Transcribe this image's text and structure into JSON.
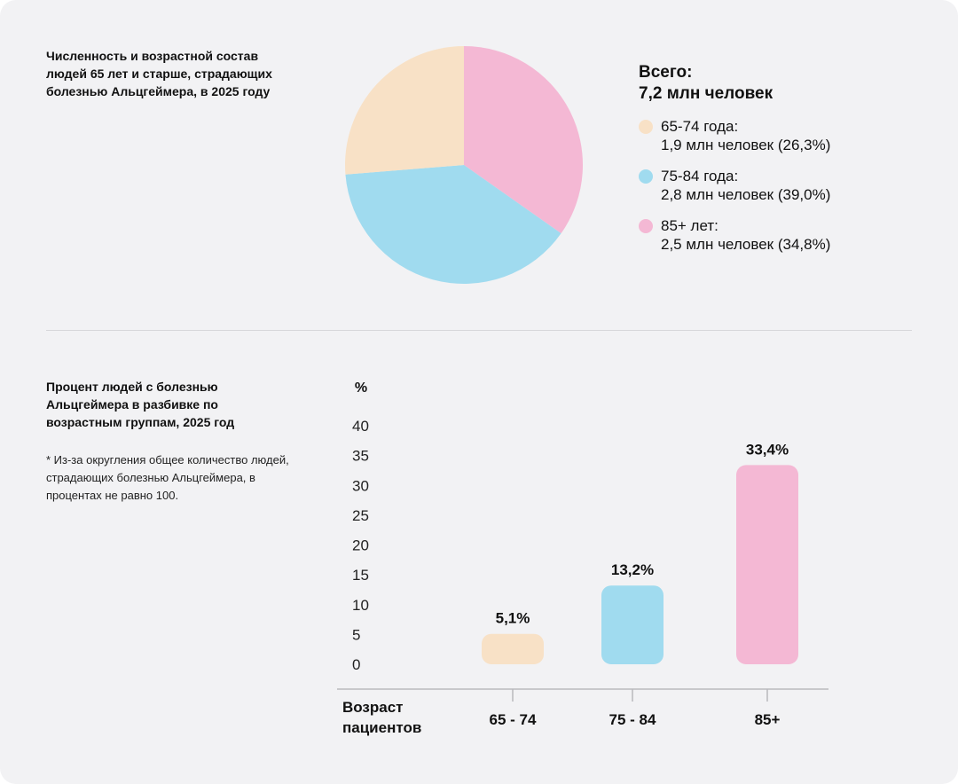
{
  "pie": {
    "title": "Численность и возрастной состав людей 65 лет и старше, страдающих болезнью Альцгеймера, в 2025 году",
    "total_label": "Всего:",
    "total_value": "7,2 млн человек",
    "legend": [
      {
        "name": "65-74 года:",
        "detail": "1,9 млн человек (26,3%)"
      },
      {
        "name": "75-84 года:",
        "detail": "2,8 млн человек (39,0%)"
      },
      {
        "name": "85+ лет:",
        "detail": "2,5 млн человек (34,8%)"
      }
    ]
  },
  "bar": {
    "title": "Процент людей с болезнью Альцгеймера в разбивке по возрастным группам, 2025 год",
    "footnote": "* Из-за округления общее количество людей, страдающих болезнью Альцгеймера, в процентах не равно 100.",
    "xlabel_line1": "Возраст",
    "xlabel_line2": "пациентов"
  },
  "chart_data": [
    {
      "type": "pie",
      "title": "Численность и возрастной состав людей 65 лет и старше, страдающих болезнью Альцгеймера, в 2025 году",
      "categories": [
        "65-74 года",
        "75-84 года",
        "85+ лет"
      ],
      "values": [
        26.3,
        39.0,
        34.8
      ],
      "colors": [
        "#f8e1c6",
        "#a0dbef",
        "#f4b8d4"
      ],
      "draw_order": [
        2,
        1,
        0
      ],
      "legend": "right"
    },
    {
      "type": "bar",
      "title": "Процент людей с болезнью Альцгеймера в разбивке по возрастным группам, 2025 год",
      "categories": [
        "65 - 74",
        "75 - 84",
        "85+"
      ],
      "values": [
        5.1,
        13.2,
        33.4
      ],
      "value_labels": [
        "5,1%",
        "13,2%",
        "33,4%"
      ],
      "colors": [
        "#f8e1c6",
        "#a0dbef",
        "#f4b8d4"
      ],
      "ylabel": "%",
      "xlabel": "Возраст пациентов",
      "ylim": [
        0,
        40
      ],
      "yticks": [
        0,
        5,
        10,
        15,
        20,
        25,
        30,
        35,
        40
      ],
      "grid": false
    }
  ]
}
